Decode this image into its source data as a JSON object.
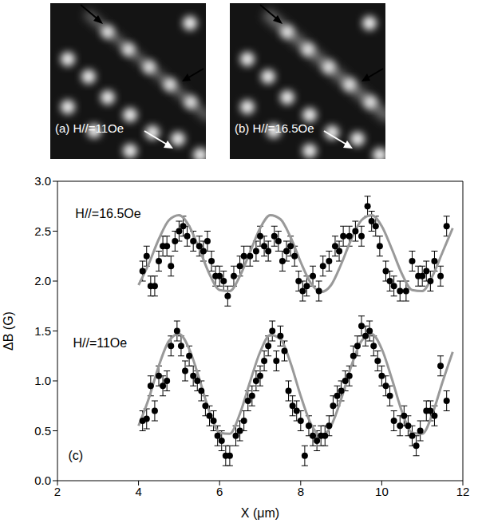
{
  "images": [
    {
      "text": "(a) H//=11Oe"
    },
    {
      "text": "(b) H//=16.5Oe"
    }
  ],
  "chart_data": {
    "type": "scatter",
    "x_label": "X (μm)",
    "y_label": "ΔB (G)",
    "xlim": [
      2,
      12
    ],
    "xticks": [
      2,
      4,
      6,
      8,
      10,
      12
    ],
    "ylim": [
      0,
      3
    ],
    "yticks": [
      {
        "value": 0,
        "label": "0.0"
      },
      {
        "value": 0.5,
        "label": "0.5"
      },
      {
        "value": 1,
        "label": "1.0"
      },
      {
        "value": 1.5,
        "label": "1.5"
      },
      {
        "value": 2,
        "label": "2.0"
      },
      {
        "value": 2.5,
        "label": "2.5"
      },
      {
        "value": 3,
        "label": "3.0"
      }
    ],
    "grid": false,
    "annotations": [
      {
        "text": "H//=16.5Oe",
        "x": 3.25,
        "y": 2.68
      },
      {
        "text": "H//=11Oe",
        "x": 3.05,
        "y": 1.38
      },
      {
        "text": "(c)",
        "x": 2.45,
        "y": 0.25
      }
    ],
    "series": [
      {
        "type": "scatter",
        "color": "#000000",
        "marker": "circle",
        "error": 0.1,
        "x": [
          4.1,
          4.2,
          4.3,
          4.4,
          4.5,
          4.6,
          4.7,
          4.8,
          4.95,
          5.05,
          5.15,
          5.25,
          5.35,
          5.45,
          5.55,
          5.65,
          5.75,
          5.85,
          5.95,
          6.05,
          6.15,
          6.25,
          6.4,
          6.5,
          6.6,
          6.7,
          6.8,
          6.9,
          7.0,
          7.1,
          7.2,
          7.3,
          7.4,
          7.5,
          7.6,
          7.7,
          7.8,
          7.9,
          8.0,
          8.1,
          8.2,
          8.3,
          8.4,
          8.5,
          8.6,
          8.7,
          8.8,
          8.9,
          9.0,
          9.1,
          9.2,
          9.3,
          9.4,
          9.5,
          9.6,
          9.7,
          9.8,
          9.9,
          10.0,
          10.1,
          10.2,
          10.3,
          10.45,
          10.55,
          10.65,
          10.75,
          10.85,
          10.95,
          11.1,
          11.2,
          11.3,
          11.45,
          11.6
        ],
        "values": [
          0.6,
          0.62,
          0.95,
          0.7,
          1.05,
          0.95,
          1.0,
          1.35,
          1.5,
          1.35,
          1.1,
          1.25,
          1.05,
          1.0,
          0.9,
          0.75,
          0.65,
          0.6,
          0.45,
          0.4,
          0.25,
          0.25,
          0.45,
          0.5,
          0.6,
          0.8,
          0.85,
          1.0,
          1.05,
          1.2,
          1.35,
          1.5,
          1.2,
          1.45,
          1.3,
          0.9,
          0.75,
          0.7,
          0.6,
          0.25,
          0.55,
          0.45,
          0.4,
          0.45,
          0.45,
          0.55,
          0.75,
          0.85,
          0.9,
          1.0,
          1.05,
          1.25,
          1.35,
          1.55,
          1.45,
          1.5,
          1.35,
          1.2,
          1.05,
          0.95,
          0.85,
          0.6,
          0.55,
          0.65,
          0.55,
          0.45,
          0.35,
          0.5,
          0.7,
          0.7,
          0.65,
          1.15,
          0.8
        ]
      },
      {
        "type": "scatter",
        "color": "#000000",
        "marker": "circle",
        "error": 0.1,
        "x": [
          4.1,
          4.2,
          4.3,
          4.4,
          4.5,
          4.6,
          4.7,
          4.8,
          4.9,
          5.0,
          5.1,
          5.2,
          5.35,
          5.5,
          5.6,
          5.7,
          5.8,
          5.9,
          6.0,
          6.1,
          6.2,
          6.35,
          6.5,
          6.6,
          6.75,
          6.9,
          7.0,
          7.1,
          7.2,
          7.35,
          7.45,
          7.55,
          7.65,
          7.75,
          7.85,
          7.95,
          8.05,
          8.15,
          8.3,
          8.45,
          8.55,
          8.7,
          8.85,
          8.95,
          9.05,
          9.2,
          9.35,
          9.5,
          9.65,
          9.75,
          9.85,
          9.95,
          10.1,
          10.2,
          10.3,
          10.45,
          10.6,
          10.75,
          10.9,
          11.0,
          11.1,
          11.2,
          11.3,
          11.45,
          11.6
        ],
        "values": [
          2.1,
          2.25,
          1.95,
          1.95,
          2.2,
          2.35,
          2.35,
          2.15,
          2.4,
          2.5,
          2.55,
          2.45,
          2.4,
          2.35,
          2.3,
          2.4,
          2.2,
          2.05,
          2.05,
          2.0,
          1.85,
          2.05,
          2.15,
          2.25,
          2.25,
          2.3,
          2.45,
          2.35,
          2.3,
          2.45,
          2.4,
          2.2,
          2.3,
          2.35,
          2.25,
          2.0,
          1.9,
          1.95,
          2.05,
          1.9,
          2.15,
          2.2,
          2.35,
          2.3,
          2.45,
          2.45,
          2.5,
          2.45,
          2.75,
          2.6,
          2.55,
          2.35,
          2.1,
          2.0,
          1.95,
          1.9,
          1.9,
          2.2,
          2.05,
          2.05,
          2.1,
          2.0,
          2.2,
          2.05,
          2.55
        ]
      },
      {
        "type": "line",
        "color": "#999999",
        "x": [
          4.0,
          4.25,
          4.5,
          4.75,
          5.0,
          5.25,
          5.5,
          5.75,
          6.0,
          6.25,
          6.5,
          6.75,
          7.0,
          7.25,
          7.5,
          7.75,
          8.0,
          8.25,
          8.5,
          8.75,
          9.0,
          9.25,
          9.5,
          9.75,
          10.0,
          10.25,
          10.5,
          10.75,
          11.0,
          11.25,
          11.5,
          11.75
        ],
        "values": [
          0.55,
          0.82,
          1.15,
          1.4,
          1.47,
          1.32,
          1.02,
          0.69,
          0.48,
          0.47,
          0.67,
          0.99,
          1.29,
          1.46,
          1.42,
          1.18,
          0.85,
          0.57,
          0.45,
          0.55,
          0.82,
          1.15,
          1.4,
          1.47,
          1.32,
          1.02,
          0.69,
          0.48,
          0.47,
          0.67,
          0.99,
          1.29
        ]
      },
      {
        "type": "line",
        "color": "#999999",
        "x": [
          4.0,
          4.25,
          4.5,
          4.75,
          5.0,
          5.25,
          5.5,
          5.75,
          6.0,
          6.25,
          6.5,
          6.75,
          7.0,
          7.25,
          7.5,
          7.75,
          8.0,
          8.25,
          8.5,
          8.75,
          9.0,
          9.25,
          9.5,
          9.75,
          10.0,
          10.25,
          10.5,
          10.75,
          11.0,
          11.25,
          11.5,
          11.75
        ],
        "values": [
          1.96,
          2.17,
          2.42,
          2.61,
          2.66,
          2.55,
          2.32,
          2.07,
          1.91,
          1.9,
          2.05,
          2.29,
          2.53,
          2.66,
          2.62,
          2.44,
          2.19,
          1.98,
          1.89,
          1.96,
          2.17,
          2.42,
          2.61,
          2.66,
          2.55,
          2.32,
          2.07,
          1.91,
          1.9,
          2.05,
          2.29,
          2.53
        ]
      }
    ]
  }
}
